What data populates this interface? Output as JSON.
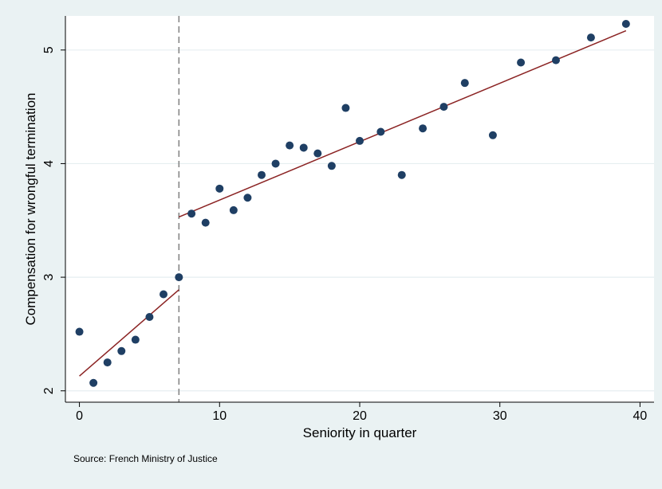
{
  "chart_data": {
    "type": "scatter",
    "xlabel": "Seniority in quarter",
    "ylabel": "Compensation for wrongful termination",
    "xlim": [
      -1,
      41
    ],
    "ylim": [
      1.9,
      5.3
    ],
    "xticks": [
      0,
      10,
      20,
      30,
      40
    ],
    "yticks": [
      2,
      3,
      4,
      5
    ],
    "grid": "horizontal",
    "cutoff_x": 7.1,
    "source_note": "Source: French Ministry of Justice",
    "colors": {
      "background": "#eaf2f3",
      "plot_area": "#ffffff",
      "points": "#1f3f64",
      "fit_line": "#8b2323",
      "cutoff_line": "#808080",
      "grid": "#e6eef0"
    },
    "series": [
      {
        "values": [
          [
            0,
            2.52
          ],
          [
            1,
            2.07
          ],
          [
            2,
            2.25
          ],
          [
            3,
            2.35
          ],
          [
            4,
            2.45
          ],
          [
            5,
            2.65
          ],
          [
            6,
            2.85
          ],
          [
            7.1,
            3.0
          ],
          [
            8,
            3.56
          ],
          [
            9,
            3.48
          ],
          [
            10,
            3.78
          ],
          [
            11,
            3.59
          ],
          [
            12,
            3.7
          ],
          [
            13,
            3.9
          ],
          [
            14,
            4.0
          ],
          [
            15,
            4.16
          ],
          [
            16,
            4.14
          ],
          [
            17,
            4.09
          ],
          [
            18,
            3.98
          ],
          [
            19,
            4.49
          ],
          [
            20,
            4.2
          ],
          [
            21.5,
            4.28
          ],
          [
            23,
            3.9
          ],
          [
            24.5,
            4.31
          ],
          [
            26,
            4.5
          ],
          [
            27.5,
            4.71
          ],
          [
            29.5,
            4.25
          ],
          [
            31.5,
            4.89
          ],
          [
            34,
            4.91
          ],
          [
            36.5,
            5.11
          ],
          [
            39,
            5.23
          ]
        ]
      }
    ],
    "fit_lines": [
      {
        "x": [
          0,
          7.1
        ],
        "y": [
          2.13,
          2.89
        ]
      },
      {
        "x": [
          7.1,
          39
        ],
        "y": [
          3.53,
          5.17
        ]
      }
    ]
  }
}
